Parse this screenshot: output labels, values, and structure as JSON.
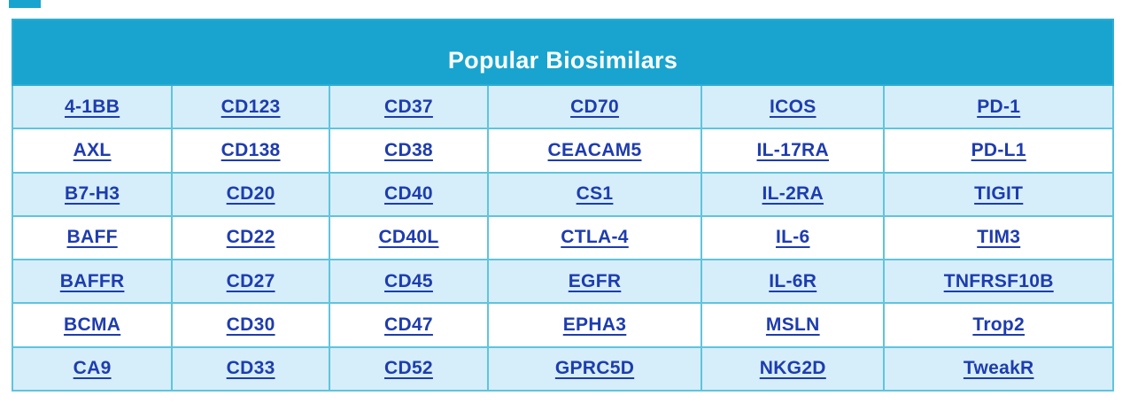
{
  "table": {
    "title": "Popular Biosimilars",
    "rows": [
      [
        "4-1BB",
        "CD123",
        "CD37",
        "CD70",
        "ICOS",
        "PD-1"
      ],
      [
        "AXL",
        "CD138",
        "CD38",
        "CEACAM5",
        "IL-17RA",
        "PD-L1"
      ],
      [
        "B7-H3",
        "CD20",
        "CD40",
        "CS1",
        "IL-2RA",
        "TIGIT"
      ],
      [
        "BAFF",
        "CD22",
        "CD40L",
        "CTLA-4",
        "IL-6",
        "TIM3"
      ],
      [
        "BAFFR",
        "CD27",
        "CD45",
        "EGFR",
        "IL-6R",
        "TNFRSF10B"
      ],
      [
        "BCMA",
        "CD30",
        "CD47",
        "EPHA3",
        "MSLN",
        "Trop2"
      ],
      [
        "CA9",
        "CD33",
        "CD52",
        "GPRC5D",
        "NKG2D",
        "TweakR"
      ]
    ],
    "colors": {
      "header_bg": "#18a4cf",
      "row_alt_bg": "#d5eefa",
      "row_bg": "#ffffff",
      "grid_border": "#5fc4de",
      "outer_border": "#2fadd2",
      "link": "#1e3cae",
      "title_text": "#ffffff",
      "page_bg": "#ffffff"
    }
  }
}
